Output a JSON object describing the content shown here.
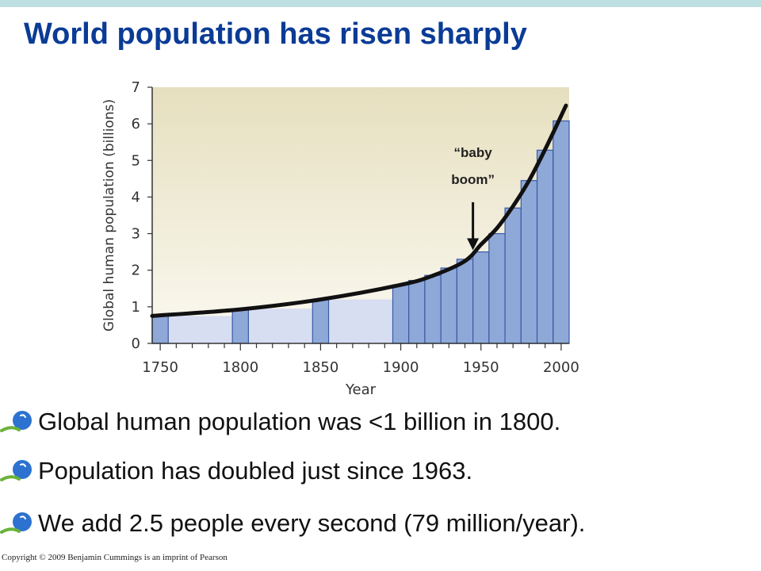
{
  "slide": {
    "title": "World population has risen sharply",
    "copyright": "Copyright © 2009 Benjamin Cummings is an imprint of Pearson"
  },
  "bullets": [
    {
      "text": "Global human population was <1 billion in 1800."
    },
    {
      "text": "Population has doubled just since 1963."
    },
    {
      "text": "We add 2.5 people every second (79 million/year)."
    }
  ],
  "colors": {
    "title": "#0a3b96",
    "top_band": "#bfe0e3",
    "bar_fill": "#8ea8d8",
    "bar_stroke": "#3a5aa6",
    "bar_lane": "#d7def2",
    "plot_bg_top": "#e6dfbf",
    "plot_bg_bottom": "#fbf9f1",
    "curve": "#111111",
    "bullet_blue": "#2d72d0",
    "bullet_green": "#6ab33a"
  },
  "chart_data": {
    "type": "bar",
    "xlabel": "Year",
    "ylabel": "Global human population (billions)",
    "xlim": [
      1745,
      2005
    ],
    "ylim": [
      0,
      7
    ],
    "xticks": [
      "1750",
      "1800",
      "1850",
      "1900",
      "1950",
      "2000"
    ],
    "yticks": [
      "0",
      "1",
      "2",
      "3",
      "4",
      "5",
      "6",
      "7"
    ],
    "bar_width_years": 10,
    "categories": [
      1750,
      1800,
      1850,
      1900,
      1910,
      1920,
      1930,
      1940,
      1950,
      1960,
      1970,
      1980,
      1990,
      2000
    ],
    "values": [
      0.75,
      0.95,
      1.2,
      1.6,
      1.72,
      1.86,
      2.06,
      2.3,
      2.5,
      3.0,
      3.7,
      4.45,
      5.28,
      6.08
    ],
    "curve": {
      "x": [
        1745,
        1800,
        1850,
        1900,
        1920,
        1940,
        1950,
        1960,
        1970,
        1980,
        1990,
        2003
      ],
      "y": [
        0.75,
        0.93,
        1.2,
        1.6,
        1.85,
        2.25,
        2.7,
        3.15,
        3.75,
        4.45,
        5.3,
        6.5
      ]
    },
    "annotation": {
      "line1": "“baby",
      "line2": "boom”",
      "x": 1945,
      "y": 2.45
    }
  }
}
